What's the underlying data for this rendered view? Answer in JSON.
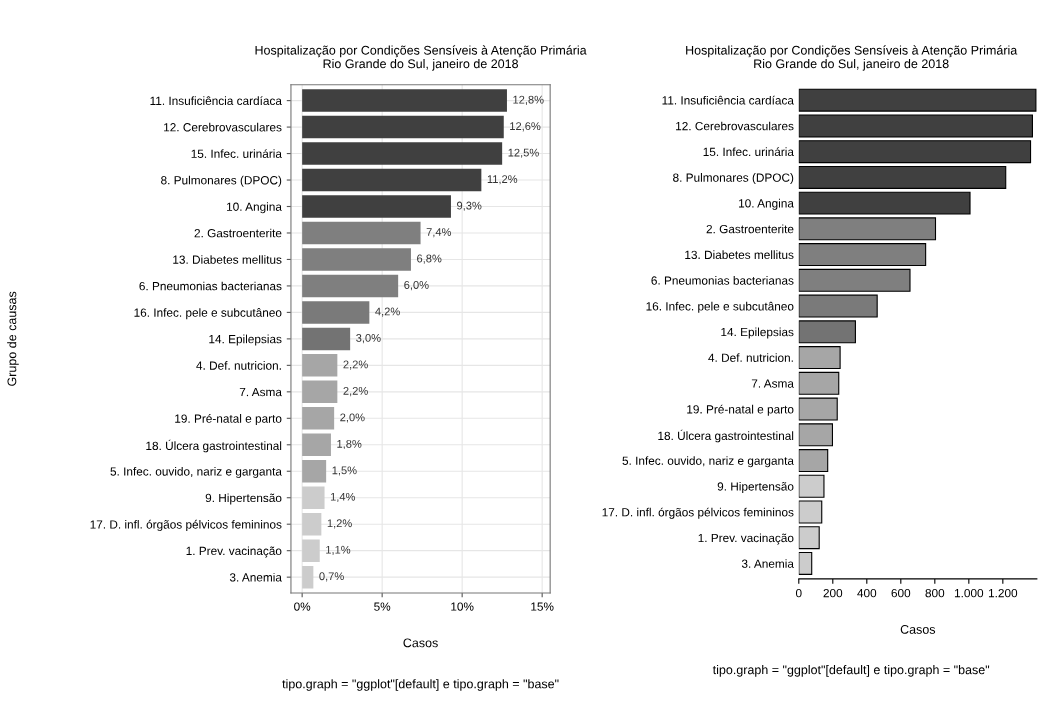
{
  "chart_data": [
    {
      "type": "bar",
      "orientation": "horizontal",
      "title": "Hospitalização por Condições Sensíveis à Atenção Primária\nRio Grande do Sul, janeiro de 2018",
      "xlabel": "Casos",
      "ylabel": "Grupo de causas",
      "categories": [
        "11. Insuficiência cardíaca",
        "12. Cerebrovasculares",
        "15. Infec. urinária",
        "8. Pulmonares (DPOC)",
        "10. Angina",
        "2. Gastroenterite",
        "13. Diabetes mellitus",
        "6. Pneumonias bacterianas",
        "16. Infec. pele e subcutâneo",
        "14. Epilepsias",
        "4. Def. nutricion.",
        "7. Asma",
        "19. Pré-natal e parto",
        "18. Úlcera gastrointestinal",
        "5. Infec. ouvido, nariz e garganta",
        "9. Hipertensão",
        "17. D. infl. órgãos pélvicos femininos",
        "1. Prev. vacinação",
        "3. Anemia"
      ],
      "values": [
        12.8,
        12.6,
        12.5,
        11.2,
        9.3,
        7.4,
        6.8,
        6.0,
        4.2,
        3.0,
        2.2,
        2.2,
        2.0,
        1.8,
        1.5,
        1.4,
        1.2,
        1.1,
        0.7
      ],
      "value_labels": [
        "12,8%",
        "12,6%",
        "12,5%",
        "11,2%",
        "9,3%",
        "7,4%",
        "6,8%",
        "6,0%",
        "4,2%",
        "3,0%",
        "2,2%",
        "2,2%",
        "2,0%",
        "1,8%",
        "1,5%",
        "1,4%",
        "1,2%",
        "1,1%",
        "0,7%"
      ],
      "colors": [
        "#404040",
        "#404040",
        "#404040",
        "#404040",
        "#404040",
        "#7f7f7f",
        "#7f7f7f",
        "#7f7f7f",
        "#7a7a7a",
        "#737373",
        "#a6a6a6",
        "#a6a6a6",
        "#a6a6a6",
        "#a6a6a6",
        "#a6a6a6",
        "#cccccc",
        "#cccccc",
        "#cccccc",
        "#cccccc"
      ],
      "xlim": [
        -0.7,
        15.5
      ],
      "xticks": [
        {
          "value": 0,
          "label": "0%"
        },
        {
          "value": 5,
          "label": "5%"
        },
        {
          "value": 10,
          "label": "10%"
        },
        {
          "value": 15,
          "label": "15%"
        }
      ],
      "grid": true,
      "annotations": [
        "tipo.graph = \"ggplot\"[default] e tipo.graph = \"base\""
      ]
    },
    {
      "type": "bar",
      "orientation": "horizontal",
      "title": "Hospitalização por Condições Sensíveis à Atenção Primária\nRio Grande do Sul, janeiro de 2018",
      "xlabel": "Casos",
      "categories": [
        "11. Insuficiência cardíaca",
        "12. Cerebrovasculares",
        "15. Infec. urinária",
        "8. Pulmonares (DPOC)",
        "10. Angina",
        "2. Gastroenterite",
        "13. Diabetes mellitus",
        "6. Pneumonias bacterianas",
        "16. Infec. pele e subcutâneo",
        "14. Epilepsias",
        "4. Def. nutricion.",
        "7. Asma",
        "19. Pré-natal e parto",
        "18. Úlcera gastrointestinal",
        "5. Infec. ouvido, nariz e garganta",
        "9. Hipertensão",
        "17. D. infl. órgãos pélvicos femininos",
        "1. Prev. vacinação",
        "3. Anemia"
      ],
      "values": [
        1395,
        1374,
        1363,
        1217,
        1007,
        804,
        746,
        654,
        461,
        333,
        243,
        235,
        226,
        198,
        170,
        148,
        135,
        120,
        76
      ],
      "colors": [
        "#404040",
        "#404040",
        "#404040",
        "#404040",
        "#404040",
        "#7f7f7f",
        "#7f7f7f",
        "#7f7f7f",
        "#7a7a7a",
        "#737373",
        "#a6a6a6",
        "#a6a6a6",
        "#a6a6a6",
        "#a6a6a6",
        "#a6a6a6",
        "#cccccc",
        "#cccccc",
        "#cccccc",
        "#cccccc"
      ],
      "xlim": [
        0,
        1400
      ],
      "xticks": [
        0,
        200,
        400,
        600,
        800,
        {
          "value": 1000,
          "label": "1.000"
        },
        {
          "value": 1200,
          "label": "1.200"
        }
      ],
      "annotations": [
        "tipo.graph = \"ggplot\"[default] e tipo.graph = \"base\""
      ]
    }
  ]
}
